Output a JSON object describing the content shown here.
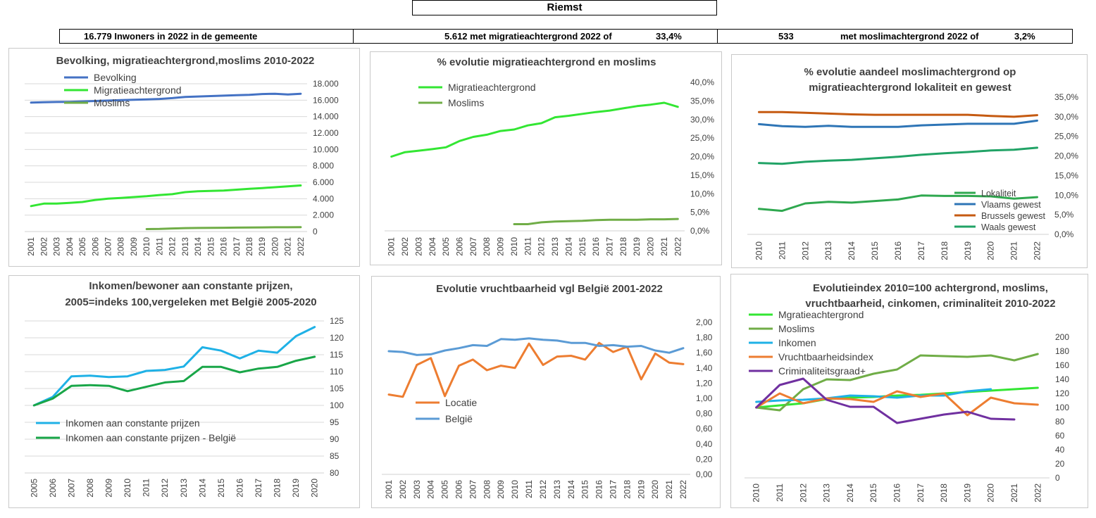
{
  "header": {
    "title": "Riemst",
    "stat_inhabitants": "16.779 Inwoners in 2022 in de gemeente",
    "stat_migration": "5.612 met migratieachtergrond 2022 of",
    "stat_migration_pct": "33,4%",
    "stat_muslim_count": "533",
    "stat_muslim_label": "met moslimachtergrond 2022 of",
    "stat_muslim_pct": "3,2%"
  },
  "chart_data": [
    {
      "id": "c1",
      "type": "line",
      "title": [
        "Bevolking, migratieachtergrond,moslims 2010-2022"
      ],
      "x": [
        "2001",
        "2002",
        "2003",
        "2004",
        "2005",
        "2006",
        "2007",
        "2008",
        "2009",
        "2010",
        "2011",
        "2012",
        "2013",
        "2014",
        "2015",
        "2016",
        "2017",
        "2018",
        "2019",
        "2020",
        "2021",
        "2022"
      ],
      "yticks": [
        "0",
        "2.000",
        "4.000",
        "6.000",
        "8.000",
        "10.000",
        "12.000",
        "14.000",
        "16.000",
        "18.000"
      ],
      "ylim": [
        0,
        18000
      ],
      "grid": true,
      "legend": "top-left",
      "legend_marker": "line",
      "series": [
        {
          "name": "Bevolking",
          "color": "#4472c4",
          "values": [
            15700,
            15750,
            15780,
            15800,
            15850,
            15900,
            15950,
            16000,
            16050,
            16100,
            16150,
            16250,
            16400,
            16450,
            16500,
            16550,
            16600,
            16650,
            16750,
            16780,
            16700,
            16779
          ]
        },
        {
          "name": "Migratieachtergrond",
          "color": "#33e633",
          "values": [
            3100,
            3400,
            3400,
            3500,
            3600,
            3850,
            4000,
            4100,
            4200,
            4300,
            4450,
            4550,
            4800,
            4900,
            4950,
            5000,
            5100,
            5200,
            5300,
            5400,
            5500,
            5612
          ]
        },
        {
          "name": "Moslims",
          "color": "#70ad47",
          "values": [
            null,
            null,
            null,
            null,
            null,
            null,
            null,
            null,
            null,
            300,
            320,
            380,
            420,
            440,
            450,
            460,
            480,
            500,
            510,
            520,
            525,
            533
          ]
        }
      ]
    },
    {
      "id": "c2",
      "type": "line",
      "title": [
        "% evolutie migratieachtergrond en moslims"
      ],
      "x": [
        "2001",
        "2002",
        "2003",
        "2004",
        "2005",
        "2006",
        "2007",
        "2008",
        "2009",
        "2010",
        "2011",
        "2012",
        "2013",
        "2014",
        "2015",
        "2016",
        "2017",
        "2018",
        "2019",
        "2020",
        "2021",
        "2022"
      ],
      "yticks": [
        "0,0%",
        "5,0%",
        "10,0%",
        "15,0%",
        "20,0%",
        "25,0%",
        "30,0%",
        "35,0%",
        "40,0%"
      ],
      "ylim": [
        0,
        40
      ],
      "grid": false,
      "legend": "top-left",
      "legend_marker": "line",
      "series": [
        {
          "name": "Migratieachtergrond",
          "color": "#33e633",
          "values": [
            20.0,
            21.2,
            21.6,
            22.0,
            22.5,
            24.2,
            25.3,
            25.9,
            26.9,
            27.3,
            28.4,
            29.0,
            30.6,
            31.0,
            31.5,
            32.0,
            32.4,
            33.0,
            33.6,
            34.0,
            34.5,
            33.4
          ]
        },
        {
          "name": "Moslims",
          "color": "#70ad47",
          "values": [
            null,
            null,
            null,
            null,
            null,
            null,
            null,
            null,
            null,
            1.8,
            1.8,
            2.3,
            2.5,
            2.6,
            2.7,
            2.9,
            3.0,
            3.0,
            3.0,
            3.1,
            3.1,
            3.2
          ]
        }
      ]
    },
    {
      "id": "c3",
      "type": "line",
      "title": [
        "% evolutie aandeel moslimachtergrond op",
        "migratieachtergrond lokaliteit en gewest"
      ],
      "x": [
        "2010",
        "2011",
        "2012",
        "2013",
        "2014",
        "2015",
        "2016",
        "2017",
        "2018",
        "2019",
        "2020",
        "2021",
        "2022"
      ],
      "yticks": [
        "0,0%",
        "5,0%",
        "10,0%",
        "15,0%",
        "20,0%",
        "25,0%",
        "30,0%",
        "35,0%"
      ],
      "ylim": [
        0,
        35
      ],
      "grid": false,
      "legend": "bottom-right",
      "legend_marker": "line",
      "series": [
        {
          "name": "Lokaliteit",
          "color": "#2fa84f",
          "values": [
            6.5,
            6.0,
            7.9,
            8.3,
            8.1,
            8.5,
            8.9,
            9.9,
            9.8,
            9.8,
            9.7,
            9.1,
            9.5
          ]
        },
        {
          "name": "Vlaams gewest",
          "color": "#2e75b6",
          "values": [
            28.1,
            27.6,
            27.4,
            27.7,
            27.4,
            27.4,
            27.4,
            27.8,
            28.0,
            28.2,
            28.2,
            28.2,
            29.0
          ]
        },
        {
          "name": "Brussels gewest",
          "color": "#c55a11",
          "values": [
            31.2,
            31.2,
            31.0,
            30.8,
            30.6,
            30.5,
            30.5,
            30.5,
            30.5,
            30.5,
            30.2,
            30.0,
            30.4
          ]
        },
        {
          "name": "Waals gewest",
          "color": "#21a366",
          "values": [
            18.2,
            18.0,
            18.5,
            18.8,
            19.0,
            19.4,
            19.8,
            20.3,
            20.7,
            21.0,
            21.4,
            21.6,
            22.1
          ]
        }
      ]
    },
    {
      "id": "c4",
      "type": "line",
      "title": [
        "Inkomen/bewoner aan constante prijzen,",
        "2005=indeks 100,vergeleken met België 2005-2020"
      ],
      "x": [
        "2005",
        "2006",
        "2007",
        "2008",
        "2009",
        "2010",
        "2011",
        "2012",
        "2013",
        "2014",
        "2015",
        "2016",
        "2017",
        "2018",
        "2019",
        "2020"
      ],
      "yticks": [
        "80",
        "85",
        "90",
        "95",
        "100",
        "105",
        "110",
        "115",
        "120",
        "125"
      ],
      "ylim": [
        80,
        125
      ],
      "grid": true,
      "legend": "bottom-left",
      "legend_marker": "line",
      "series": [
        {
          "name": "Inkomen aan constante prijzen",
          "color": "#1fb1e6",
          "values": [
            100,
            102.5,
            108.6,
            108.8,
            108.4,
            108.6,
            110.2,
            110.5,
            111.5,
            117.2,
            116.2,
            113.9,
            116.2,
            115.6,
            120.5,
            123.2
          ]
        },
        {
          "name": "Inkomen aan constante prijzen - België",
          "color": "#19a648",
          "values": [
            100,
            102,
            105.8,
            106.0,
            105.8,
            104.2,
            105.5,
            106.8,
            107.2,
            111.4,
            111.4,
            109.8,
            110.9,
            111.4,
            113.2,
            114.4
          ]
        }
      ]
    },
    {
      "id": "c5",
      "type": "line",
      "title": [
        "Evolutie vruchtbaarheid vgl België 2001-2022"
      ],
      "x": [
        "2001",
        "2002",
        "2003",
        "2004",
        "2005",
        "2006",
        "2007",
        "2008",
        "2009",
        "2010",
        "2011",
        "2012",
        "2013",
        "2014",
        "2015",
        "2016",
        "2017",
        "2018",
        "2019",
        "2020",
        "2021",
        "2022"
      ],
      "yticks": [
        "0,00",
        "0,20",
        "0,40",
        "0,60",
        "0,80",
        "1,00",
        "1,20",
        "1,40",
        "1,60",
        "1,80",
        "2,00"
      ],
      "ylim": [
        0,
        2
      ],
      "grid": false,
      "legend": "bottom-left",
      "legend_marker": "line",
      "series": [
        {
          "name": "Locatie",
          "color": "#ed7d31",
          "values": [
            1.05,
            1.02,
            1.44,
            1.53,
            1.03,
            1.43,
            1.51,
            1.37,
            1.43,
            1.4,
            1.72,
            1.44,
            1.55,
            1.56,
            1.51,
            1.73,
            1.61,
            1.68,
            1.25,
            1.59,
            1.47,
            1.45
          ]
        },
        {
          "name": "België",
          "color": "#5b9bd5",
          "values": [
            1.62,
            1.61,
            1.57,
            1.58,
            1.63,
            1.66,
            1.7,
            1.69,
            1.78,
            1.77,
            1.79,
            1.77,
            1.76,
            1.73,
            1.73,
            1.69,
            1.7,
            1.68,
            1.69,
            1.63,
            1.6,
            1.66
          ]
        }
      ]
    },
    {
      "id": "c6",
      "type": "line",
      "title": [
        "Evolutieindex 2010=100 achtergrond, moslims,",
        "vruchtbaarheid, cinkomen, criminaliteit  2010-2022"
      ],
      "x": [
        "2010",
        "2011",
        "2012",
        "2013",
        "2014",
        "2015",
        "2016",
        "2017",
        "2018",
        "2019",
        "2020",
        "2021",
        "2022"
      ],
      "yticks": [
        "0",
        "20",
        "40",
        "60",
        "80",
        "100",
        "120",
        "140",
        "160",
        "180",
        "200"
      ],
      "ylim": [
        0,
        200
      ],
      "grid": false,
      "legend": "top-left",
      "legend_marker": "line",
      "series": [
        {
          "name": "Mgratieachtergrond",
          "color": "#33e633",
          "values": [
            100,
            103,
            106,
            112,
            114,
            115,
            117,
            118,
            120,
            122,
            124,
            126,
            128
          ]
        },
        {
          "name": "Moslims",
          "color": "#70ad47",
          "values": [
            100,
            96,
            126,
            140,
            139,
            148,
            154,
            174,
            173,
            172,
            174,
            167,
            176
          ]
        },
        {
          "name": "Inkomen",
          "color": "#1fb1e6",
          "values": [
            108,
            110,
            111,
            113,
            117,
            116,
            114,
            117,
            117,
            123,
            126,
            null,
            null
          ]
        },
        {
          "name": "Vruchtbaarheidsindex",
          "color": "#ed7d31",
          "values": [
            100,
            120,
            106,
            113,
            112,
            108,
            123,
            115,
            120,
            89,
            114,
            106,
            104
          ]
        },
        {
          "name": "Criminaliteitsgraad+",
          "color": "#7030a0",
          "values": [
            100,
            132,
            141,
            111,
            101,
            101,
            78,
            84,
            90,
            94,
            84,
            83,
            null
          ]
        }
      ]
    }
  ]
}
